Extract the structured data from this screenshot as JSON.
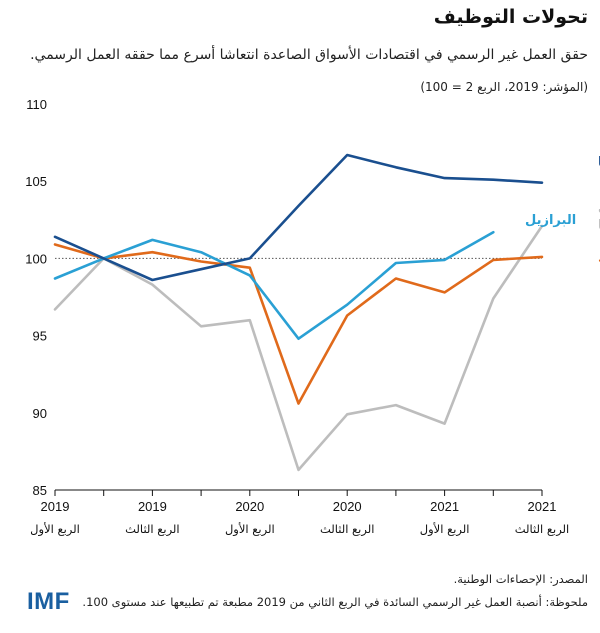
{
  "header": {
    "title": "تحولات التوظيف",
    "subtitle": "حقق العمل غير الرسمي في اقتصادات الأسواق الصاعدة انتعاشا أسرع مما حققه العمل الرسمي.",
    "index_note": "(المؤشر: 2019، الربع 2 = 100)"
  },
  "footer": {
    "source": "المصدر: الإحصاءات الوطنية.",
    "note": "ملحوظة: أنصبة العمل غير الرسمي السائدة في الربع الثاني من 2019 مطبعة تم تطبيعها عند مستوى 100.",
    "logo": "IMF"
  },
  "colors": {
    "indonesia": "#1a4f8f",
    "brazil": "#2aa0d4",
    "south_africa": "#bdbdbd",
    "mexico": "#e06a1b",
    "axis": "#111111",
    "reference": "#555555"
  },
  "chart_data": {
    "type": "line",
    "title": "تحولات التوظيف",
    "ylim": [
      85,
      110
    ],
    "yticks": [
      85,
      90,
      95,
      100,
      105,
      110
    ],
    "reference_line": 100,
    "x": [
      0,
      1,
      2,
      3,
      4,
      5,
      6,
      7,
      8,
      9,
      10
    ],
    "x_tick_positions": [
      0,
      2,
      4,
      6,
      8,
      10
    ],
    "x_tick_labels": [
      {
        "year": "2019",
        "quarter": "الربع الأول"
      },
      {
        "year": "2019",
        "quarter": "الربع الثالث"
      },
      {
        "year": "2020",
        "quarter": "الربع الأول"
      },
      {
        "year": "2020",
        "quarter": "الربع الثالث"
      },
      {
        "year": "2021",
        "quarter": "الربع الأول"
      },
      {
        "year": "2021",
        "quarter": "الربع الثالث"
      }
    ],
    "series": [
      {
        "key": "south_africa",
        "name": "جنوب إفريقيا",
        "label_lines": [
          "جنوب",
          "إفريقيا"
        ],
        "values": [
          96.7,
          100,
          98.3,
          95.6,
          96.0,
          86.3,
          89.9,
          90.5,
          89.3,
          97.4,
          102.1
        ]
      },
      {
        "key": "mexico",
        "name": "المكسيك",
        "label_lines": [
          "المكسيك"
        ],
        "values": [
          100.9,
          100,
          100.4,
          99.8,
          99.4,
          90.6,
          96.3,
          98.7,
          97.8,
          99.9,
          100.1
        ]
      },
      {
        "key": "brazil",
        "name": "البرازيل",
        "label_lines": [
          "البرازيل"
        ],
        "values": [
          98.7,
          100,
          101.2,
          100.4,
          98.9,
          94.8,
          97.0,
          99.7,
          99.9,
          101.7,
          null
        ]
      },
      {
        "key": "indonesia",
        "name": "إندونيسيا",
        "label_lines": [
          "إندونيسيا"
        ],
        "values": [
          101.4,
          100,
          98.6,
          99.3,
          100.0,
          103.4,
          106.7,
          105.9,
          105.2,
          105.1,
          104.9
        ]
      }
    ]
  }
}
